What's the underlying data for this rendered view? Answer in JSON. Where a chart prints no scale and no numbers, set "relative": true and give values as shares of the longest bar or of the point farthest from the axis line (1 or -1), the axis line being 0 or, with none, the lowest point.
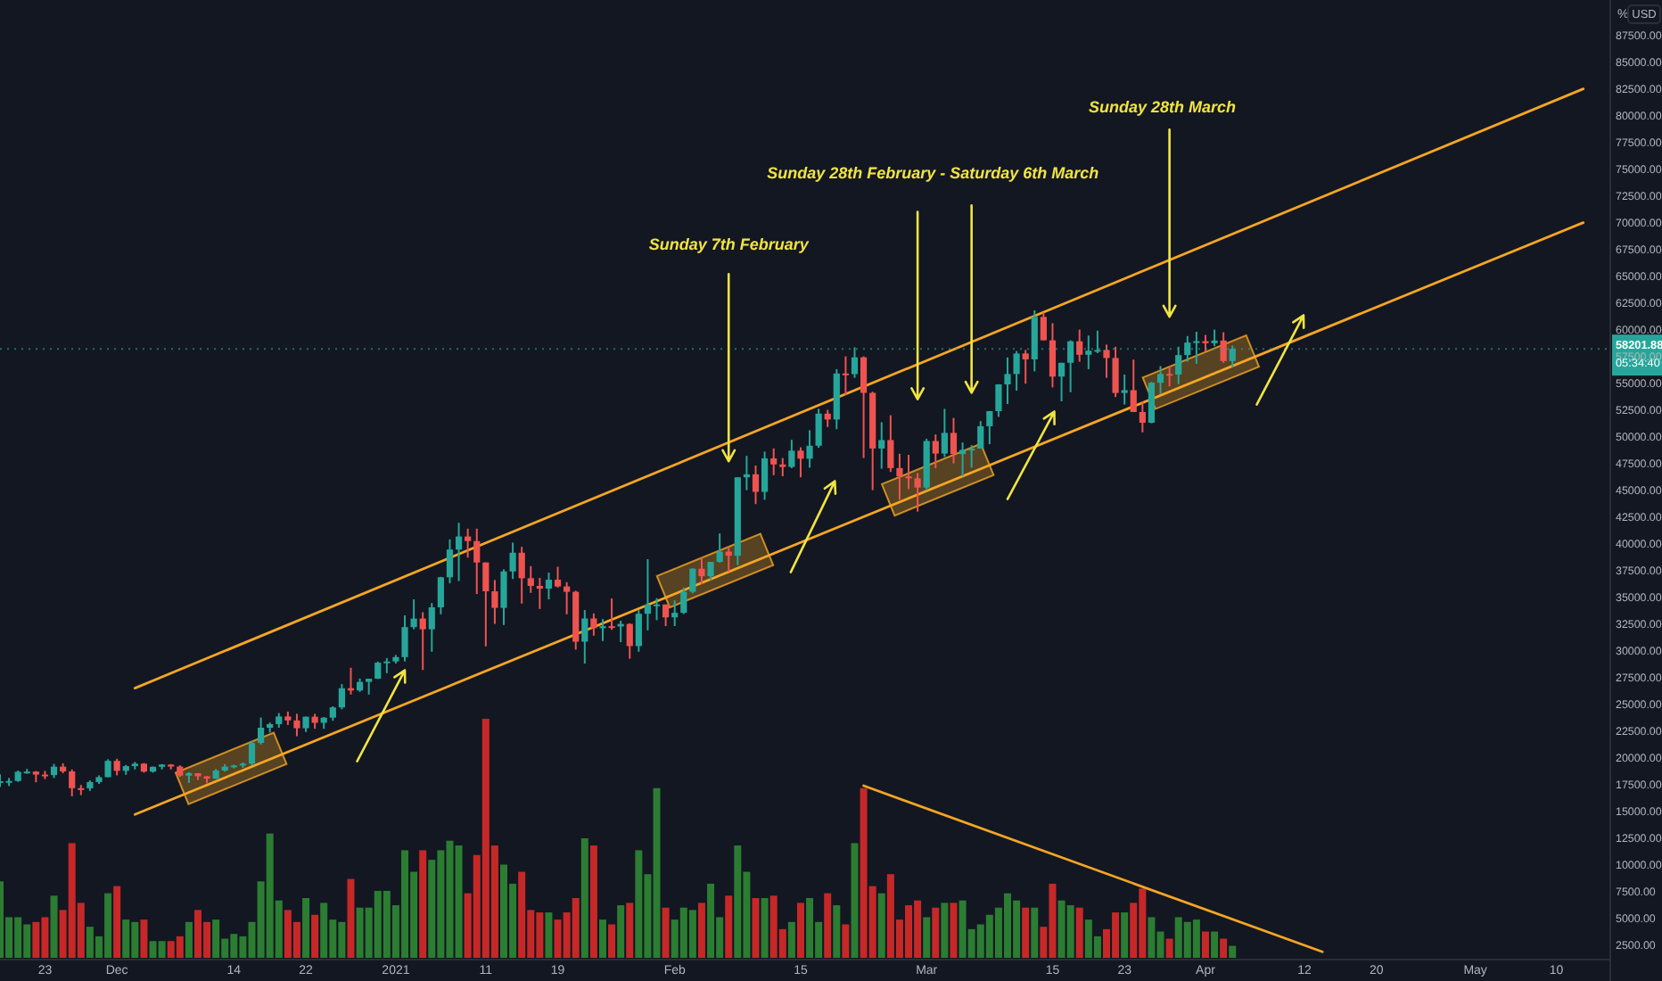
{
  "chart_data": [
    {
      "type": "candlestick",
      "x": [
        "2020-11-18",
        "2020-11-19",
        "2020-11-20",
        "2020-11-21",
        "2020-11-22",
        "2020-11-23",
        "2020-11-24",
        "2020-11-25",
        "2020-11-26",
        "2020-11-27",
        "2020-11-28",
        "2020-11-29",
        "2020-11-30",
        "2020-12-01",
        "2020-12-02",
        "2020-12-03",
        "2020-12-04",
        "2020-12-05",
        "2020-12-06",
        "2020-12-07",
        "2020-12-08",
        "2020-12-09",
        "2020-12-10",
        "2020-12-11",
        "2020-12-12",
        "2020-12-13",
        "2020-12-14",
        "2020-12-15",
        "2020-12-16",
        "2020-12-17",
        "2020-12-18",
        "2020-12-19",
        "2020-12-20",
        "2020-12-21",
        "2020-12-22",
        "2020-12-23",
        "2020-12-24",
        "2020-12-25",
        "2020-12-26",
        "2020-12-27",
        "2020-12-28",
        "2020-12-29",
        "2020-12-30",
        "2020-12-31",
        "2021-01-01",
        "2021-01-02",
        "2021-01-03",
        "2021-01-04",
        "2021-01-05",
        "2021-01-06",
        "2021-01-07",
        "2021-01-08",
        "2021-01-09",
        "2021-01-10",
        "2021-01-11",
        "2021-01-12",
        "2021-01-13",
        "2021-01-14",
        "2021-01-15",
        "2021-01-16",
        "2021-01-17",
        "2021-01-18",
        "2021-01-19",
        "2021-01-20",
        "2021-01-21",
        "2021-01-22",
        "2021-01-23",
        "2021-01-24",
        "2021-01-25",
        "2021-01-26",
        "2021-01-27",
        "2021-01-28",
        "2021-01-29",
        "2021-01-30",
        "2021-01-31",
        "2021-02-01",
        "2021-02-02",
        "2021-02-03",
        "2021-02-04",
        "2021-02-05",
        "2021-02-06",
        "2021-02-07",
        "2021-02-08",
        "2021-02-09",
        "2021-02-10",
        "2021-02-11",
        "2021-02-12",
        "2021-02-13",
        "2021-02-14",
        "2021-02-15",
        "2021-02-16",
        "2021-02-17",
        "2021-02-18",
        "2021-02-19",
        "2021-02-20",
        "2021-02-21",
        "2021-02-22",
        "2021-02-23",
        "2021-02-24",
        "2021-02-25",
        "2021-02-26",
        "2021-02-27",
        "2021-02-28",
        "2021-03-01",
        "2021-03-02",
        "2021-03-03",
        "2021-03-04",
        "2021-03-05",
        "2021-03-06",
        "2021-03-07",
        "2021-03-08",
        "2021-03-09",
        "2021-03-10",
        "2021-03-11",
        "2021-03-12",
        "2021-03-13",
        "2021-03-14",
        "2021-03-15",
        "2021-03-16",
        "2021-03-17",
        "2021-03-18",
        "2021-03-19",
        "2021-03-20",
        "2021-03-21",
        "2021-03-22",
        "2021-03-23",
        "2021-03-24",
        "2021-03-25",
        "2021-03-26",
        "2021-03-27",
        "2021-03-28",
        "2021-03-29",
        "2021-03-30",
        "2021-03-31",
        "2021-04-01",
        "2021-04-02",
        "2021-04-03",
        "2021-04-04"
      ],
      "ohlc": [
        [
          17650,
          18450,
          17250,
          17800
        ],
        [
          17800,
          18100,
          17350,
          17820
        ],
        [
          17820,
          18800,
          17750,
          18680
        ],
        [
          18680,
          18950,
          18500,
          18700
        ],
        [
          18700,
          18750,
          17700,
          18420
        ],
        [
          18420,
          18770,
          18000,
          18370
        ],
        [
          18370,
          19420,
          18100,
          19160
        ],
        [
          19160,
          19480,
          18550,
          18720
        ],
        [
          18720,
          18900,
          16400,
          17150
        ],
        [
          17150,
          17450,
          16500,
          17140
        ],
        [
          17140,
          17880,
          16900,
          17720
        ],
        [
          17720,
          18350,
          17550,
          18180
        ],
        [
          18180,
          19850,
          18180,
          19700
        ],
        [
          19700,
          19900,
          18350,
          18770
        ],
        [
          18770,
          19320,
          18400,
          19210
        ],
        [
          19210,
          19600,
          18900,
          19440
        ],
        [
          19440,
          19500,
          18600,
          18700
        ],
        [
          18700,
          19170,
          18600,
          19150
        ],
        [
          19150,
          19400,
          18900,
          19360
        ],
        [
          19360,
          19400,
          18900,
          19170
        ],
        [
          19170,
          19290,
          18200,
          18320
        ],
        [
          18320,
          18650,
          17650,
          18550
        ],
        [
          18550,
          18560,
          17920,
          18260
        ],
        [
          18260,
          18280,
          17600,
          18040
        ],
        [
          18040,
          18950,
          18020,
          18800
        ],
        [
          18800,
          19400,
          18700,
          19170
        ],
        [
          19170,
          19350,
          19000,
          19270
        ],
        [
          19270,
          19560,
          19050,
          19440
        ],
        [
          19440,
          21560,
          19300,
          21380
        ],
        [
          21380,
          23750,
          21230,
          22800
        ],
        [
          22800,
          23280,
          22350,
          23140
        ],
        [
          23140,
          24170,
          22800,
          23850
        ],
        [
          23850,
          24300,
          23060,
          23480
        ],
        [
          23480,
          24100,
          22000,
          22750
        ],
        [
          22750,
          23830,
          22400,
          23830
        ],
        [
          23830,
          24100,
          22700,
          23260
        ],
        [
          23260,
          23790,
          22700,
          23740
        ],
        [
          23740,
          24800,
          23450,
          24700
        ],
        [
          24700,
          26870,
          24520,
          26490
        ],
        [
          26490,
          28400,
          25900,
          26280
        ],
        [
          26280,
          27400,
          26150,
          27080
        ],
        [
          27080,
          27380,
          25900,
          27380
        ],
        [
          27380,
          28980,
          27350,
          28880
        ],
        [
          28880,
          29300,
          27900,
          28990
        ],
        [
          28990,
          29600,
          28800,
          29400
        ],
        [
          29400,
          33300,
          29000,
          32200
        ],
        [
          32200,
          34800,
          32000,
          33000
        ],
        [
          33000,
          33600,
          28200,
          32000
        ],
        [
          32000,
          34450,
          29900,
          34050
        ],
        [
          34050,
          36900,
          33400,
          36860
        ],
        [
          36860,
          40400,
          36300,
          39450
        ],
        [
          39450,
          41950,
          36500,
          40670
        ],
        [
          40670,
          41400,
          38700,
          40240
        ],
        [
          40240,
          41400,
          35300,
          38240
        ],
        [
          38240,
          38250,
          30400,
          35550
        ],
        [
          35550,
          36600,
          32500,
          34000
        ],
        [
          34000,
          37600,
          32400,
          37400
        ],
        [
          37400,
          40100,
          36700,
          39150
        ],
        [
          39150,
          39700,
          34400,
          36770
        ],
        [
          36770,
          37900,
          35400,
          36050
        ],
        [
          36050,
          36800,
          33900,
          35800
        ],
        [
          35800,
          37300,
          34800,
          36630
        ],
        [
          36630,
          37850,
          35900,
          36000
        ],
        [
          36000,
          36400,
          33400,
          35500
        ],
        [
          35500,
          35600,
          30100,
          30840
        ],
        [
          30840,
          33800,
          28800,
          33010
        ],
        [
          33010,
          33480,
          31400,
          32100
        ],
        [
          32100,
          32950,
          30900,
          32290
        ],
        [
          32290,
          34880,
          31950,
          32260
        ],
        [
          32260,
          32800,
          30800,
          32500
        ],
        [
          32500,
          32560,
          29250,
          30430
        ],
        [
          30430,
          33780,
          29900,
          33450
        ],
        [
          33450,
          38550,
          31900,
          34300
        ],
        [
          34300,
          34900,
          32850,
          34320
        ],
        [
          34320,
          34320,
          32300,
          33110
        ],
        [
          33110,
          34700,
          32300,
          33540
        ],
        [
          33540,
          35900,
          33420,
          35510
        ],
        [
          35510,
          37700,
          35370,
          37660
        ],
        [
          37660,
          38700,
          36200,
          36950
        ],
        [
          36950,
          38300,
          36600,
          38290
        ],
        [
          38290,
          40950,
          38220,
          39260
        ],
        [
          39260,
          39700,
          37400,
          38870
        ],
        [
          38870,
          46200,
          37990,
          46200
        ],
        [
          46200,
          48200,
          45000,
          46480
        ],
        [
          46480,
          47300,
          43700,
          44840
        ],
        [
          44840,
          48600,
          44100,
          47970
        ],
        [
          47970,
          48900,
          46400,
          47400
        ],
        [
          47400,
          48000,
          46300,
          47170
        ],
        [
          47170,
          49700,
          47050,
          48690
        ],
        [
          48690,
          49000,
          46200,
          47940
        ],
        [
          47940,
          50600,
          47100,
          49150
        ],
        [
          49150,
          52600,
          48950,
          52150
        ],
        [
          52150,
          52500,
          50900,
          51600
        ],
        [
          51600,
          56300,
          50700,
          55900
        ],
        [
          55900,
          57500,
          53900,
          55840
        ],
        [
          55840,
          58350,
          55500,
          57410
        ],
        [
          57410,
          57500,
          48000,
          54090
        ],
        [
          54090,
          54200,
          45000,
          48890
        ],
        [
          48890,
          51350,
          47000,
          49680
        ],
        [
          49680,
          52000,
          46700,
          47060
        ],
        [
          47060,
          48400,
          44100,
          46290
        ],
        [
          46290,
          48300,
          45100,
          46100
        ],
        [
          46100,
          46600,
          43000,
          45240
        ],
        [
          45240,
          49800,
          45000,
          49590
        ],
        [
          49590,
          50200,
          47050,
          48420
        ],
        [
          48420,
          52600,
          48100,
          50350
        ],
        [
          50350,
          51750,
          47500,
          48370
        ],
        [
          48370,
          49450,
          46300,
          48760
        ],
        [
          48760,
          49200,
          47100,
          48880
        ],
        [
          48880,
          51450,
          48880,
          50970
        ],
        [
          50970,
          52400,
          49300,
          52380
        ],
        [
          52380,
          54900,
          51850,
          54880
        ],
        [
          54880,
          57400,
          53050,
          55850
        ],
        [
          55850,
          58000,
          54300,
          57770
        ],
        [
          57770,
          58100,
          54950,
          57220
        ],
        [
          57220,
          61800,
          56100,
          61190
        ],
        [
          61190,
          61600,
          59000,
          59000
        ],
        [
          59000,
          60600,
          54600,
          55610
        ],
        [
          55610,
          56900,
          53300,
          56900
        ],
        [
          56900,
          59000,
          54150,
          58910
        ],
        [
          58910,
          60000,
          57000,
          57650
        ],
        [
          57650,
          59450,
          56300,
          58030
        ],
        [
          58030,
          59900,
          57800,
          58100
        ],
        [
          58100,
          58600,
          55500,
          57350
        ],
        [
          57350,
          58400,
          53700,
          54080
        ],
        [
          54080,
          55800,
          53000,
          54340
        ],
        [
          54340,
          57200,
          52300,
          52300
        ],
        [
          52300,
          53250,
          50400,
          51300
        ],
        [
          51300,
          55100,
          51250,
          55040
        ],
        [
          55040,
          56600,
          54000,
          55860
        ],
        [
          55860,
          56580,
          54700,
          55800
        ],
        [
          55800,
          58400,
          54900,
          57620
        ],
        [
          57620,
          59400,
          57000,
          58790
        ],
        [
          58790,
          59800,
          56800,
          58920
        ],
        [
          58920,
          59500,
          57950,
          58730
        ],
        [
          58730,
          60000,
          58450,
          58980
        ],
        [
          58980,
          59750,
          56900,
          57060
        ],
        [
          57060,
          58500,
          56500,
          58201.88
        ]
      ],
      "colors": [
        "#26a69a",
        "#26a69a",
        "#26a69a",
        "#26a69a",
        "#ef5350",
        "#ef5350",
        "#26a69a",
        "#ef5350",
        "#ef5350",
        "#ef5350",
        "#26a69a",
        "#26a69a",
        "#26a69a",
        "#ef5350",
        "#26a69a",
        "#26a69a",
        "#ef5350",
        "#26a69a",
        "#26a69a",
        "#ef5350",
        "#ef5350",
        "#26a69a",
        "#ef5350",
        "#ef5350",
        "#26a69a",
        "#26a69a",
        "#26a69a",
        "#26a69a",
        "#26a69a",
        "#26a69a",
        "#26a69a",
        "#26a69a",
        "#ef5350",
        "#ef5350",
        "#26a69a",
        "#ef5350",
        "#26a69a",
        "#26a69a",
        "#26a69a",
        "#ef5350",
        "#26a69a",
        "#26a69a",
        "#26a69a",
        "#26a69a",
        "#26a69a",
        "#26a69a",
        "#26a69a",
        "#ef5350",
        "#26a69a",
        "#26a69a",
        "#26a69a",
        "#26a69a",
        "#ef5350",
        "#ef5350",
        "#ef5350",
        "#ef5350",
        "#26a69a",
        "#26a69a",
        "#ef5350",
        "#ef5350",
        "#ef5350",
        "#26a69a",
        "#ef5350",
        "#ef5350",
        "#ef5350",
        "#26a69a",
        "#ef5350",
        "#26a69a",
        "#ef5350",
        "#26a69a",
        "#ef5350",
        "#26a69a",
        "#26a69a",
        "#26a69a",
        "#ef5350",
        "#26a69a",
        "#26a69a",
        "#26a69a",
        "#ef5350",
        "#26a69a",
        "#26a69a",
        "#ef5350",
        "#26a69a",
        "#26a69a",
        "#ef5350",
        "#26a69a",
        "#ef5350",
        "#ef5350",
        "#26a69a",
        "#ef5350",
        "#26a69a",
        "#26a69a",
        "#ef5350",
        "#26a69a",
        "#ef5350",
        "#26a69a",
        "#ef5350",
        "#ef5350",
        "#26a69a",
        "#ef5350",
        "#ef5350",
        "#ef5350",
        "#ef5350",
        "#26a69a",
        "#ef5350",
        "#26a69a",
        "#ef5350",
        "#26a69a",
        "#26a69a",
        "#26a69a",
        "#26a69a",
        "#26a69a",
        "#26a69a",
        "#26a69a",
        "#ef5350",
        "#26a69a",
        "#ef5350",
        "#ef5350",
        "#26a69a",
        "#26a69a",
        "#ef5350",
        "#26a69a",
        "#26a69a",
        "#ef5350",
        "#ef5350",
        "#26a69a",
        "#ef5350",
        "#ef5350",
        "#26a69a",
        "#26a69a",
        "#ef5350",
        "#26a69a",
        "#26a69a",
        "#26a69a",
        "#ef5350",
        "#26a69a",
        "#ef5350",
        "#26a69a"
      ],
      "series": [
        {
          "type": "line",
          "x": [
            "2020-12-03",
            "2021-05-13"
          ],
          "values": [
            26500,
            82500
          ],
          "color": "#f5a623"
        },
        {
          "type": "line",
          "x": [
            "2020-12-03",
            "2021-05-13"
          ],
          "values": [
            14700,
            70000
          ],
          "color": "#f5a623"
        }
      ],
      "xlim": [
        "2020-11-18",
        "2021-05-16"
      ],
      "xticks": [
        {
          "value": "2020-11-23",
          "label": "23"
        },
        {
          "value": "2020-12-01",
          "label": "Dec"
        },
        {
          "value": "2020-12-14",
          "label": "14"
        },
        {
          "value": "2020-12-22",
          "label": "22"
        },
        {
          "value": "2021-01-01",
          "label": "2021"
        },
        {
          "value": "2021-01-11",
          "label": "11"
        },
        {
          "value": "2021-01-19",
          "label": "19"
        },
        {
          "value": "2021-02-01",
          "label": "Feb"
        },
        {
          "value": "2021-02-15",
          "label": "15"
        },
        {
          "value": "2021-03-01",
          "label": "Mar"
        },
        {
          "value": "2021-03-15",
          "label": "15"
        },
        {
          "value": "2021-03-23",
          "label": "23"
        },
        {
          "value": "2021-04-01",
          "label": "Apr"
        },
        {
          "value": "2021-04-12",
          "label": "12"
        },
        {
          "value": "2021-04-20",
          "label": "20"
        },
        {
          "value": "2021-05-01",
          "label": "May"
        },
        {
          "value": "2021-05-10",
          "label": "10"
        }
      ],
      "ylim": [
        1300,
        90800
      ],
      "yticks": [
        {
          "value": 2500,
          "label": "2500.00"
        },
        {
          "value": 5000,
          "label": "5000.00"
        },
        {
          "value": 7500,
          "label": "7500.00"
        },
        {
          "value": 10000,
          "label": "10000.00"
        },
        {
          "value": 12500,
          "label": "12500.00"
        },
        {
          "value": 15000,
          "label": "15000.00"
        },
        {
          "value": 17500,
          "label": "17500.00"
        },
        {
          "value": 20000,
          "label": "20000.00"
        },
        {
          "value": 22500,
          "label": "22500.00"
        },
        {
          "value": 25000,
          "label": "25000.00"
        },
        {
          "value": 27500,
          "label": "27500.00"
        },
        {
          "value": 30000,
          "label": "30000.00"
        },
        {
          "value": 32500,
          "label": "32500.00"
        },
        {
          "value": 35000,
          "label": "35000.00"
        },
        {
          "value": 37500,
          "label": "37500.00"
        },
        {
          "value": 40000,
          "label": "40000.00"
        },
        {
          "value": 42500,
          "label": "42500.00"
        },
        {
          "value": 45000,
          "label": "45000.00"
        },
        {
          "value": 47500,
          "label": "47500.00"
        },
        {
          "value": 50000,
          "label": "50000.00"
        },
        {
          "value": 52500,
          "label": "52500.00"
        },
        {
          "value": 55000,
          "label": "55000.00"
        },
        {
          "value": 57500,
          "label": "57500.00"
        },
        {
          "value": 60000,
          "label": "60000.00"
        },
        {
          "value": 62500,
          "label": "62500.00"
        },
        {
          "value": 65000,
          "label": "65000.00"
        },
        {
          "value": 67500,
          "label": "67500.00"
        },
        {
          "value": 70000,
          "label": "70000.00"
        },
        {
          "value": 72500,
          "label": "72500.00"
        },
        {
          "value": 75000,
          "label": "75000.00"
        },
        {
          "value": 77500,
          "label": "77500.00"
        },
        {
          "value": 80000,
          "label": "80000.00"
        },
        {
          "value": 82500,
          "label": "82500.00"
        },
        {
          "value": 85000,
          "label": "85000.00"
        },
        {
          "value": 87500,
          "label": "87500.00"
        }
      ],
      "ylabel": "USD",
      "ref_lines": [
        {
          "axis": "y",
          "value": 58201.88,
          "label": "58201.88",
          "color": "#26a69a",
          "line_style": "dotted"
        }
      ],
      "annotations": [
        "Sunday 7th February",
        "Sunday 28th February - Saturday 6th March",
        "Sunday 28th March",
        "05:34:40",
        "%"
      ]
    },
    {
      "type": "bar",
      "x": [
        "2020-11-18",
        "2020-11-19",
        "2020-11-20",
        "2020-11-21",
        "2020-11-22",
        "2020-11-23",
        "2020-11-24",
        "2020-11-25",
        "2020-11-26",
        "2020-11-27",
        "2020-11-28",
        "2020-11-29",
        "2020-11-30",
        "2020-12-01",
        "2020-12-02",
        "2020-12-03",
        "2020-12-04",
        "2020-12-05",
        "2020-12-06",
        "2020-12-07",
        "2020-12-08",
        "2020-12-09",
        "2020-12-10",
        "2020-12-11",
        "2020-12-12",
        "2020-12-13",
        "2020-12-14",
        "2020-12-15",
        "2020-12-16",
        "2020-12-17",
        "2020-12-18",
        "2020-12-19",
        "2020-12-20",
        "2020-12-21",
        "2020-12-22",
        "2020-12-23",
        "2020-12-24",
        "2020-12-25",
        "2020-12-26",
        "2020-12-27",
        "2020-12-28",
        "2020-12-29",
        "2020-12-30",
        "2020-12-31",
        "2021-01-01",
        "2021-01-02",
        "2021-01-03",
        "2021-01-04",
        "2021-01-05",
        "2021-01-06",
        "2021-01-07",
        "2021-01-08",
        "2021-01-09",
        "2021-01-10",
        "2021-01-11",
        "2021-01-12",
        "2021-01-13",
        "2021-01-14",
        "2021-01-15",
        "2021-01-16",
        "2021-01-17",
        "2021-01-18",
        "2021-01-19",
        "2021-01-20",
        "2021-01-21",
        "2021-01-22",
        "2021-01-23",
        "2021-01-24",
        "2021-01-25",
        "2021-01-26",
        "2021-01-27",
        "2021-01-28",
        "2021-01-29",
        "2021-01-30",
        "2021-01-31",
        "2021-02-01",
        "2021-02-02",
        "2021-02-03",
        "2021-02-04",
        "2021-02-05",
        "2021-02-06",
        "2021-02-07",
        "2021-02-08",
        "2021-02-09",
        "2021-02-10",
        "2021-02-11",
        "2021-02-12",
        "2021-02-13",
        "2021-02-14",
        "2021-02-15",
        "2021-02-16",
        "2021-02-17",
        "2021-02-18",
        "2021-02-19",
        "2021-02-20",
        "2021-02-21",
        "2021-02-22",
        "2021-02-23",
        "2021-02-24",
        "2021-02-25",
        "2021-02-26",
        "2021-02-27",
        "2021-02-28",
        "2021-03-01",
        "2021-03-02",
        "2021-03-03",
        "2021-03-04",
        "2021-03-05",
        "2021-03-06",
        "2021-03-07",
        "2021-03-08",
        "2021-03-09",
        "2021-03-10",
        "2021-03-11",
        "2021-03-12",
        "2021-03-13",
        "2021-03-14",
        "2021-03-15",
        "2021-03-16",
        "2021-03-17",
        "2021-03-18",
        "2021-03-19",
        "2021-03-20",
        "2021-03-21",
        "2021-03-22",
        "2021-03-23",
        "2021-03-24",
        "2021-03-25",
        "2021-03-26",
        "2021-03-27",
        "2021-03-28",
        "2021-03-29",
        "2021-03-30",
        "2021-03-31",
        "2021-04-01",
        "2021-04-02",
        "2021-04-03",
        "2021-04-04"
      ],
      "relative": true,
      "xlim": [
        "2020-11-18",
        "2021-05-16"
      ],
      "series": [
        {
          "type": "bar",
          "values": [
            0.32,
            0.17,
            0.17,
            0.14,
            0.15,
            0.17,
            0.26,
            0.2,
            0.48,
            0.23,
            0.13,
            0.09,
            0.27,
            0.3,
            0.16,
            0.15,
            0.16,
            0.07,
            0.07,
            0.07,
            0.09,
            0.15,
            0.2,
            0.15,
            0.16,
            0.08,
            0.1,
            0.09,
            0.15,
            0.32,
            0.52,
            0.24,
            0.2,
            0.15,
            0.25,
            0.18,
            0.23,
            0.16,
            0.15,
            0.33,
            0.21,
            0.21,
            0.28,
            0.28,
            0.22,
            0.45,
            0.36,
            0.45,
            0.41,
            0.45,
            0.49,
            0.47,
            0.27,
            0.43,
            1,
            0.47,
            0.39,
            0.31,
            0.36,
            0.2,
            0.19,
            0.19,
            0.16,
            0.19,
            0.25,
            0.5,
            0.47,
            0.16,
            0.14,
            0.22,
            0.23,
            0.45,
            0.35,
            0.71,
            0.21,
            0.16,
            0.21,
            0.2,
            0.23,
            0.31,
            0.17,
            0.26,
            0.47,
            0.36,
            0.25,
            0.25,
            0.26,
            0.12,
            0.15,
            0.23,
            0.25,
            0.15,
            0.27,
            0.22,
            0.14,
            0.48,
            0.71,
            0.3,
            0.27,
            0.35,
            0.16,
            0.22,
            0.24,
            0.17,
            0.21,
            0.23,
            0.23,
            0.24,
            0.12,
            0.14,
            0.18,
            0.21,
            0.27,
            0.24,
            0.21,
            0.21,
            0.13,
            0.31,
            0.24,
            0.22,
            0.21,
            0.16,
            0.09,
            0.12,
            0.19,
            0.19,
            0.23,
            0.29,
            0.17,
            0.11,
            0.08,
            0.17,
            0.15,
            0.16,
            0.11,
            0.11,
            0.08,
            0.05
          ],
          "colors": [
            "#2b7d32",
            "#2b7d32",
            "#2b7d32",
            "#2b7d32",
            "#c62828",
            "#c62828",
            "#2b7d32",
            "#c62828",
            "#c62828",
            "#c62828",
            "#2b7d32",
            "#2b7d32",
            "#2b7d32",
            "#c62828",
            "#2b7d32",
            "#2b7d32",
            "#c62828",
            "#2b7d32",
            "#2b7d32",
            "#c62828",
            "#c62828",
            "#2b7d32",
            "#c62828",
            "#c62828",
            "#2b7d32",
            "#2b7d32",
            "#2b7d32",
            "#2b7d32",
            "#2b7d32",
            "#2b7d32",
            "#2b7d32",
            "#2b7d32",
            "#c62828",
            "#c62828",
            "#2b7d32",
            "#c62828",
            "#2b7d32",
            "#2b7d32",
            "#2b7d32",
            "#c62828",
            "#2b7d32",
            "#2b7d32",
            "#2b7d32",
            "#2b7d32",
            "#2b7d32",
            "#2b7d32",
            "#2b7d32",
            "#c62828",
            "#2b7d32",
            "#2b7d32",
            "#2b7d32",
            "#2b7d32",
            "#c62828",
            "#c62828",
            "#c62828",
            "#c62828",
            "#2b7d32",
            "#2b7d32",
            "#c62828",
            "#c62828",
            "#c62828",
            "#2b7d32",
            "#c62828",
            "#c62828",
            "#c62828",
            "#2b7d32",
            "#c62828",
            "#2b7d32",
            "#c62828",
            "#2b7d32",
            "#c62828",
            "#2b7d32",
            "#2b7d32",
            "#2b7d32",
            "#c62828",
            "#2b7d32",
            "#2b7d32",
            "#2b7d32",
            "#c62828",
            "#2b7d32",
            "#2b7d32",
            "#c62828",
            "#2b7d32",
            "#2b7d32",
            "#c62828",
            "#2b7d32",
            "#c62828",
            "#c62828",
            "#2b7d32",
            "#c62828",
            "#2b7d32",
            "#2b7d32",
            "#c62828",
            "#2b7d32",
            "#c62828",
            "#2b7d32",
            "#c62828",
            "#c62828",
            "#2b7d32",
            "#c62828",
            "#c62828",
            "#c62828",
            "#c62828",
            "#2b7d32",
            "#c62828",
            "#2b7d32",
            "#c62828",
            "#2b7d32",
            "#2b7d32",
            "#2b7d32",
            "#2b7d32",
            "#2b7d32",
            "#2b7d32",
            "#2b7d32",
            "#c62828",
            "#2b7d32",
            "#c62828",
            "#c62828",
            "#2b7d32",
            "#2b7d32",
            "#c62828",
            "#2b7d32",
            "#2b7d32",
            "#c62828",
            "#c62828",
            "#2b7d32",
            "#c62828",
            "#c62828",
            "#2b7d32",
            "#2b7d32",
            "#c62828",
            "#2b7d32",
            "#2b7d32",
            "#2b7d32",
            "#c62828",
            "#2b7d32",
            "#c62828",
            "#2b7d32"
          ]
        },
        {
          "type": "line",
          "x": [
            "2021-02-22",
            "2021-04-14"
          ],
          "values": [
            0.72,
            0.025
          ],
          "color": "#f5a623"
        }
      ]
    }
  ]
}
